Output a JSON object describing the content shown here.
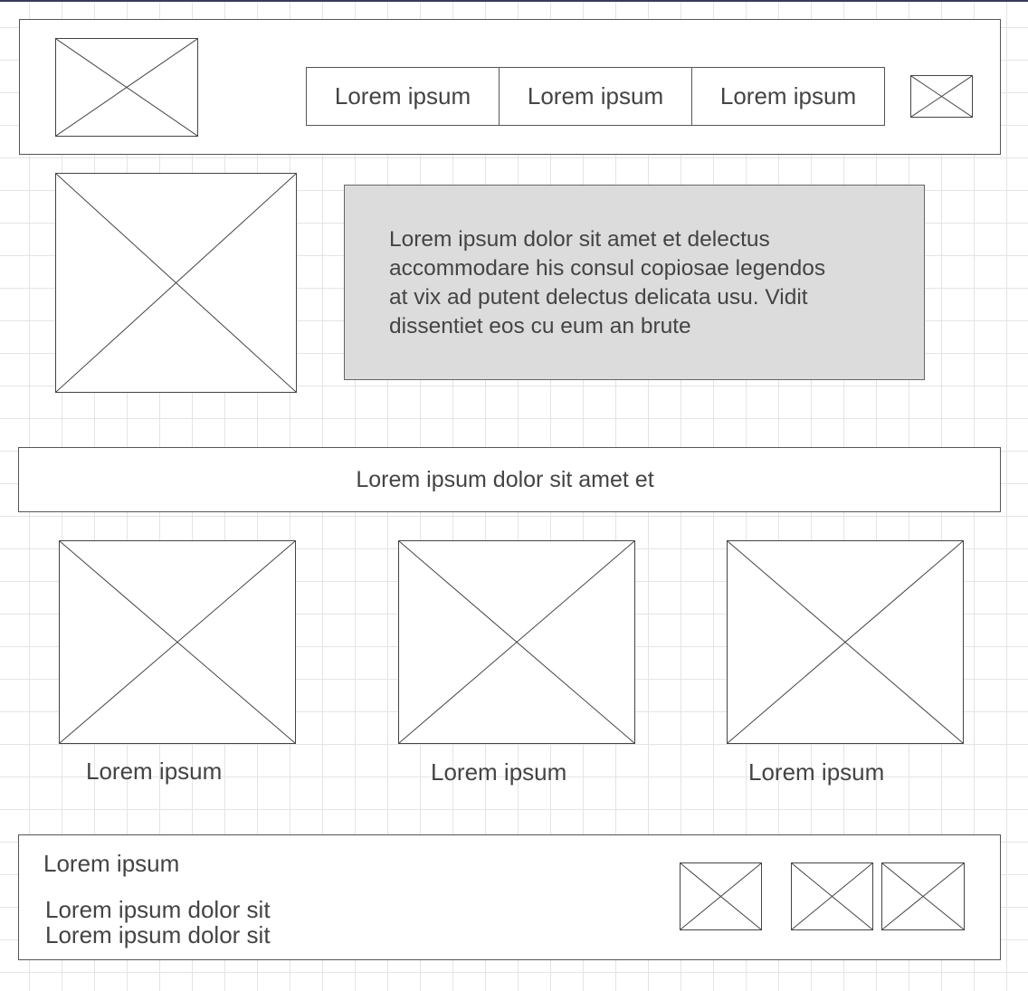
{
  "header": {
    "nav": [
      "Lorem ipsum",
      "Lorem ipsum",
      "Lorem ipsum"
    ]
  },
  "hero": {
    "text_lines": [
      "Lorem ipsum dolor sit amet et delectus",
      "accommodare his consul copiosae legendos",
      "at vix ad putent delectus delicata usu. Vidit",
      "dissentiet eos cu eum an brute"
    ]
  },
  "banner": {
    "text": "Lorem ipsum dolor sit amet et"
  },
  "cards": [
    {
      "caption": "Lorem ipsum"
    },
    {
      "caption": "Lorem ipsum"
    },
    {
      "caption": "Lorem ipsum"
    }
  ],
  "footer": {
    "title": "Lorem ipsum",
    "lines": [
      "Lorem ipsum dolor sit",
      "Lorem ipsum dolor sit"
    ]
  },
  "colors": {
    "hero_background": "#dcdcdc",
    "grid": "#e4e4e4",
    "stroke": "#444444"
  }
}
